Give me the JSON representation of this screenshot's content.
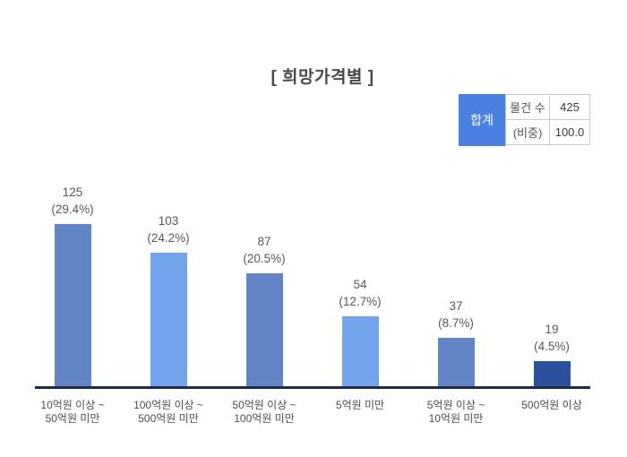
{
  "title": "[ 희망가격별 ]",
  "summary_table": {
    "total_label": "합계",
    "rows": [
      {
        "label": "물건 수",
        "value": "425"
      },
      {
        "label": "(비중)",
        "value": "100.0"
      }
    ],
    "header_bg": "#4A80E1",
    "header_text_color": "#ffffff",
    "border_color": "#c9c9c9"
  },
  "chart_data": {
    "type": "bar",
    "title": "[ 희망가격별 ]",
    "categories": [
      "10억원 이상 ~ 50억원 미만",
      "100억원 이상 ~ 500억원 미만",
      "50억원 이상 ~ 100억원 미만",
      "5억원 미만",
      "5억원 이상 ~ 10억원 미만",
      "500억원 이상"
    ],
    "category_lines": [
      [
        "10억원 이상 ~",
        "50억원 미만"
      ],
      [
        "100억원 이상 ~",
        "500억원 미만"
      ],
      [
        "50억원 이상 ~",
        "100억원 미만"
      ],
      [
        "5억원 미만"
      ],
      [
        "5억원 이상 ~",
        "10억원 미만"
      ],
      [
        "500억원 이상"
      ]
    ],
    "values": [
      125,
      103,
      87,
      54,
      37,
      19
    ],
    "percents": [
      29.4,
      24.2,
      20.5,
      12.7,
      8.7,
      4.5
    ],
    "total_count": 425,
    "total_percent": 100.0,
    "bar_colors": [
      "#6484C8",
      "#73A3EA",
      "#6484C8",
      "#73A3EA",
      "#6484C8",
      "#2C4F9E"
    ],
    "axis_color": "#1C2D52",
    "grid": false,
    "legend": "none",
    "y_axis_visible": false
  }
}
